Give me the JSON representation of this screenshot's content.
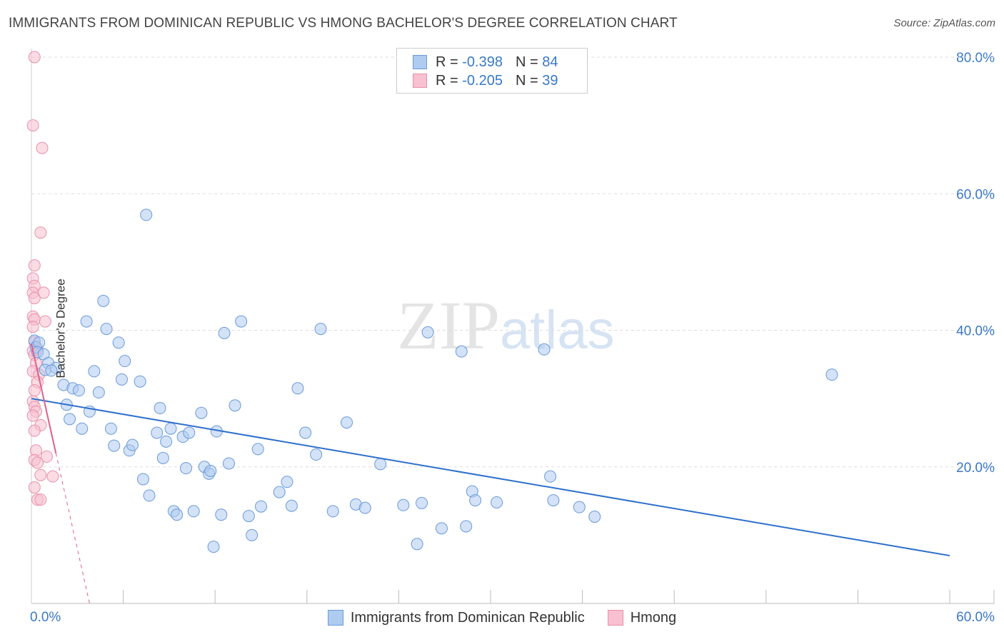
{
  "title": "IMMIGRANTS FROM DOMINICAN REPUBLIC VS HMONG BACHELOR'S DEGREE CORRELATION CHART",
  "source": "Source: ZipAtlas.com",
  "watermark": {
    "zip": "ZIP",
    "atlas": "atlas"
  },
  "colors": {
    "blue_fill": "#aecbf0",
    "blue_stroke": "#6a9ad8",
    "blue_line": "#2e6fcc",
    "pink_fill": "#f8c0d0",
    "pink_stroke": "#e890aa",
    "pink_line": "#e06088",
    "grid": "#dddddd",
    "tick_text": "#3a78c8"
  },
  "legend": {
    "rows": [
      {
        "r_label": "R =",
        "r_value": "-0.398",
        "n_label": "N =",
        "n_value": "84"
      },
      {
        "r_label": "R =",
        "r_value": "-0.205",
        "n_label": "N =",
        "n_value": "39"
      }
    ]
  },
  "chart_data": {
    "type": "scatter",
    "title": "IMMIGRANTS FROM DOMINICAN REPUBLIC VS HMONG BACHELOR'S DEGREE CORRELATION CHART",
    "xlabel": "",
    "ylabel": "Bachelor's Degree",
    "xlim": [
      0,
      60
    ],
    "ylim": [
      0,
      80
    ],
    "x_tick_labels": [
      "0.0%",
      "60.0%"
    ],
    "y_tick_labels": [
      "20.0%",
      "40.0%",
      "60.0%",
      "80.0%"
    ],
    "y_ticks": [
      20,
      40,
      60,
      80
    ],
    "grid": true,
    "series": [
      {
        "name": "Immigrants from Dominican Republic",
        "points": [
          [
            0.2,
            38.5
          ],
          [
            0.3,
            37.5
          ],
          [
            0.5,
            38.2
          ],
          [
            0.4,
            36.8
          ],
          [
            0.8,
            36.5
          ],
          [
            1.1,
            35.2
          ],
          [
            0.9,
            34.2
          ],
          [
            1.6,
            34.5
          ],
          [
            1.3,
            34.1
          ],
          [
            2.1,
            32.0
          ],
          [
            2.7,
            31.5
          ],
          [
            3.1,
            31.2
          ],
          [
            2.3,
            29.1
          ],
          [
            2.5,
            27.0
          ],
          [
            3.3,
            25.6
          ],
          [
            3.8,
            28.1
          ],
          [
            4.1,
            34.0
          ],
          [
            4.4,
            30.9
          ],
          [
            3.6,
            41.3
          ],
          [
            4.7,
            44.3
          ],
          [
            4.9,
            40.2
          ],
          [
            5.7,
            38.2
          ],
          [
            6.1,
            35.5
          ],
          [
            5.9,
            32.8
          ],
          [
            7.1,
            32.5
          ],
          [
            5.2,
            25.6
          ],
          [
            5.4,
            23.1
          ],
          [
            6.4,
            22.4
          ],
          [
            6.6,
            23.2
          ],
          [
            7.5,
            56.9
          ],
          [
            7.3,
            18.2
          ],
          [
            7.7,
            15.8
          ],
          [
            8.2,
            25.0
          ],
          [
            8.4,
            28.6
          ],
          [
            8.6,
            21.3
          ],
          [
            8.8,
            23.7
          ],
          [
            9.1,
            25.6
          ],
          [
            9.3,
            13.5
          ],
          [
            9.5,
            13.0
          ],
          [
            9.9,
            24.4
          ],
          [
            10.3,
            25.0
          ],
          [
            10.1,
            19.8
          ],
          [
            10.6,
            13.5
          ],
          [
            11.1,
            27.9
          ],
          [
            11.3,
            20.0
          ],
          [
            11.6,
            19.0
          ],
          [
            11.7,
            19.4
          ],
          [
            11.9,
            8.3
          ],
          [
            12.1,
            25.2
          ],
          [
            12.4,
            13.0
          ],
          [
            12.6,
            39.6
          ],
          [
            12.9,
            20.5
          ],
          [
            13.3,
            29.0
          ],
          [
            13.7,
            41.3
          ],
          [
            14.2,
            12.8
          ],
          [
            14.4,
            10.0
          ],
          [
            14.8,
            22.6
          ],
          [
            15.0,
            14.2
          ],
          [
            16.2,
            16.3
          ],
          [
            16.7,
            17.8
          ],
          [
            17.0,
            14.3
          ],
          [
            17.4,
            31.5
          ],
          [
            17.9,
            25.0
          ],
          [
            18.6,
            21.8
          ],
          [
            18.9,
            40.2
          ],
          [
            19.7,
            13.5
          ],
          [
            20.6,
            26.5
          ],
          [
            21.2,
            14.5
          ],
          [
            21.8,
            14.0
          ],
          [
            22.8,
            20.4
          ],
          [
            24.3,
            14.4
          ],
          [
            25.2,
            8.7
          ],
          [
            25.5,
            14.7
          ],
          [
            25.9,
            39.7
          ],
          [
            26.8,
            11.0
          ],
          [
            28.1,
            36.9
          ],
          [
            28.4,
            11.3
          ],
          [
            28.8,
            16.4
          ],
          [
            29.0,
            15.1
          ],
          [
            30.4,
            14.8
          ],
          [
            33.5,
            37.2
          ],
          [
            33.9,
            18.6
          ],
          [
            34.1,
            15.1
          ],
          [
            35.8,
            14.1
          ],
          [
            36.8,
            12.7
          ],
          [
            52.3,
            33.5
          ]
        ],
        "trend": {
          "x": [
            0,
            60
          ],
          "y": [
            30.0,
            7.0
          ]
        }
      },
      {
        "name": "Hmong",
        "points": [
          [
            0.2,
            80.0
          ],
          [
            0.1,
            70.0
          ],
          [
            0.7,
            66.7
          ],
          [
            0.6,
            54.3
          ],
          [
            0.2,
            49.5
          ],
          [
            0.1,
            47.6
          ],
          [
            0.2,
            46.5
          ],
          [
            0.1,
            45.5
          ],
          [
            0.8,
            45.5
          ],
          [
            0.2,
            44.7
          ],
          [
            0.1,
            42.0
          ],
          [
            0.2,
            41.6
          ],
          [
            0.9,
            41.3
          ],
          [
            0.1,
            40.5
          ],
          [
            0.2,
            38.3
          ],
          [
            0.3,
            37.6
          ],
          [
            0.1,
            37.0
          ],
          [
            0.4,
            37.2
          ],
          [
            0.2,
            36.4
          ],
          [
            0.3,
            35.2
          ],
          [
            0.1,
            34.0
          ],
          [
            0.5,
            33.5
          ],
          [
            0.4,
            32.4
          ],
          [
            0.2,
            31.2
          ],
          [
            0.1,
            29.6
          ],
          [
            0.2,
            28.8
          ],
          [
            0.3,
            28.1
          ],
          [
            0.1,
            27.5
          ],
          [
            0.6,
            26.1
          ],
          [
            0.2,
            25.3
          ],
          [
            0.3,
            22.4
          ],
          [
            1.0,
            21.5
          ],
          [
            0.2,
            21.0
          ],
          [
            0.4,
            20.6
          ],
          [
            0.6,
            18.8
          ],
          [
            1.4,
            18.6
          ],
          [
            0.2,
            17.0
          ],
          [
            0.4,
            15.2
          ],
          [
            0.6,
            15.2
          ]
        ],
        "trend": {
          "x": [
            0,
            1.6
          ],
          "y": [
            38.0,
            22.0
          ]
        },
        "trend_dashed": {
          "x": [
            1.6,
            3.8
          ],
          "y": [
            22.0,
            0.0
          ]
        }
      }
    ]
  }
}
